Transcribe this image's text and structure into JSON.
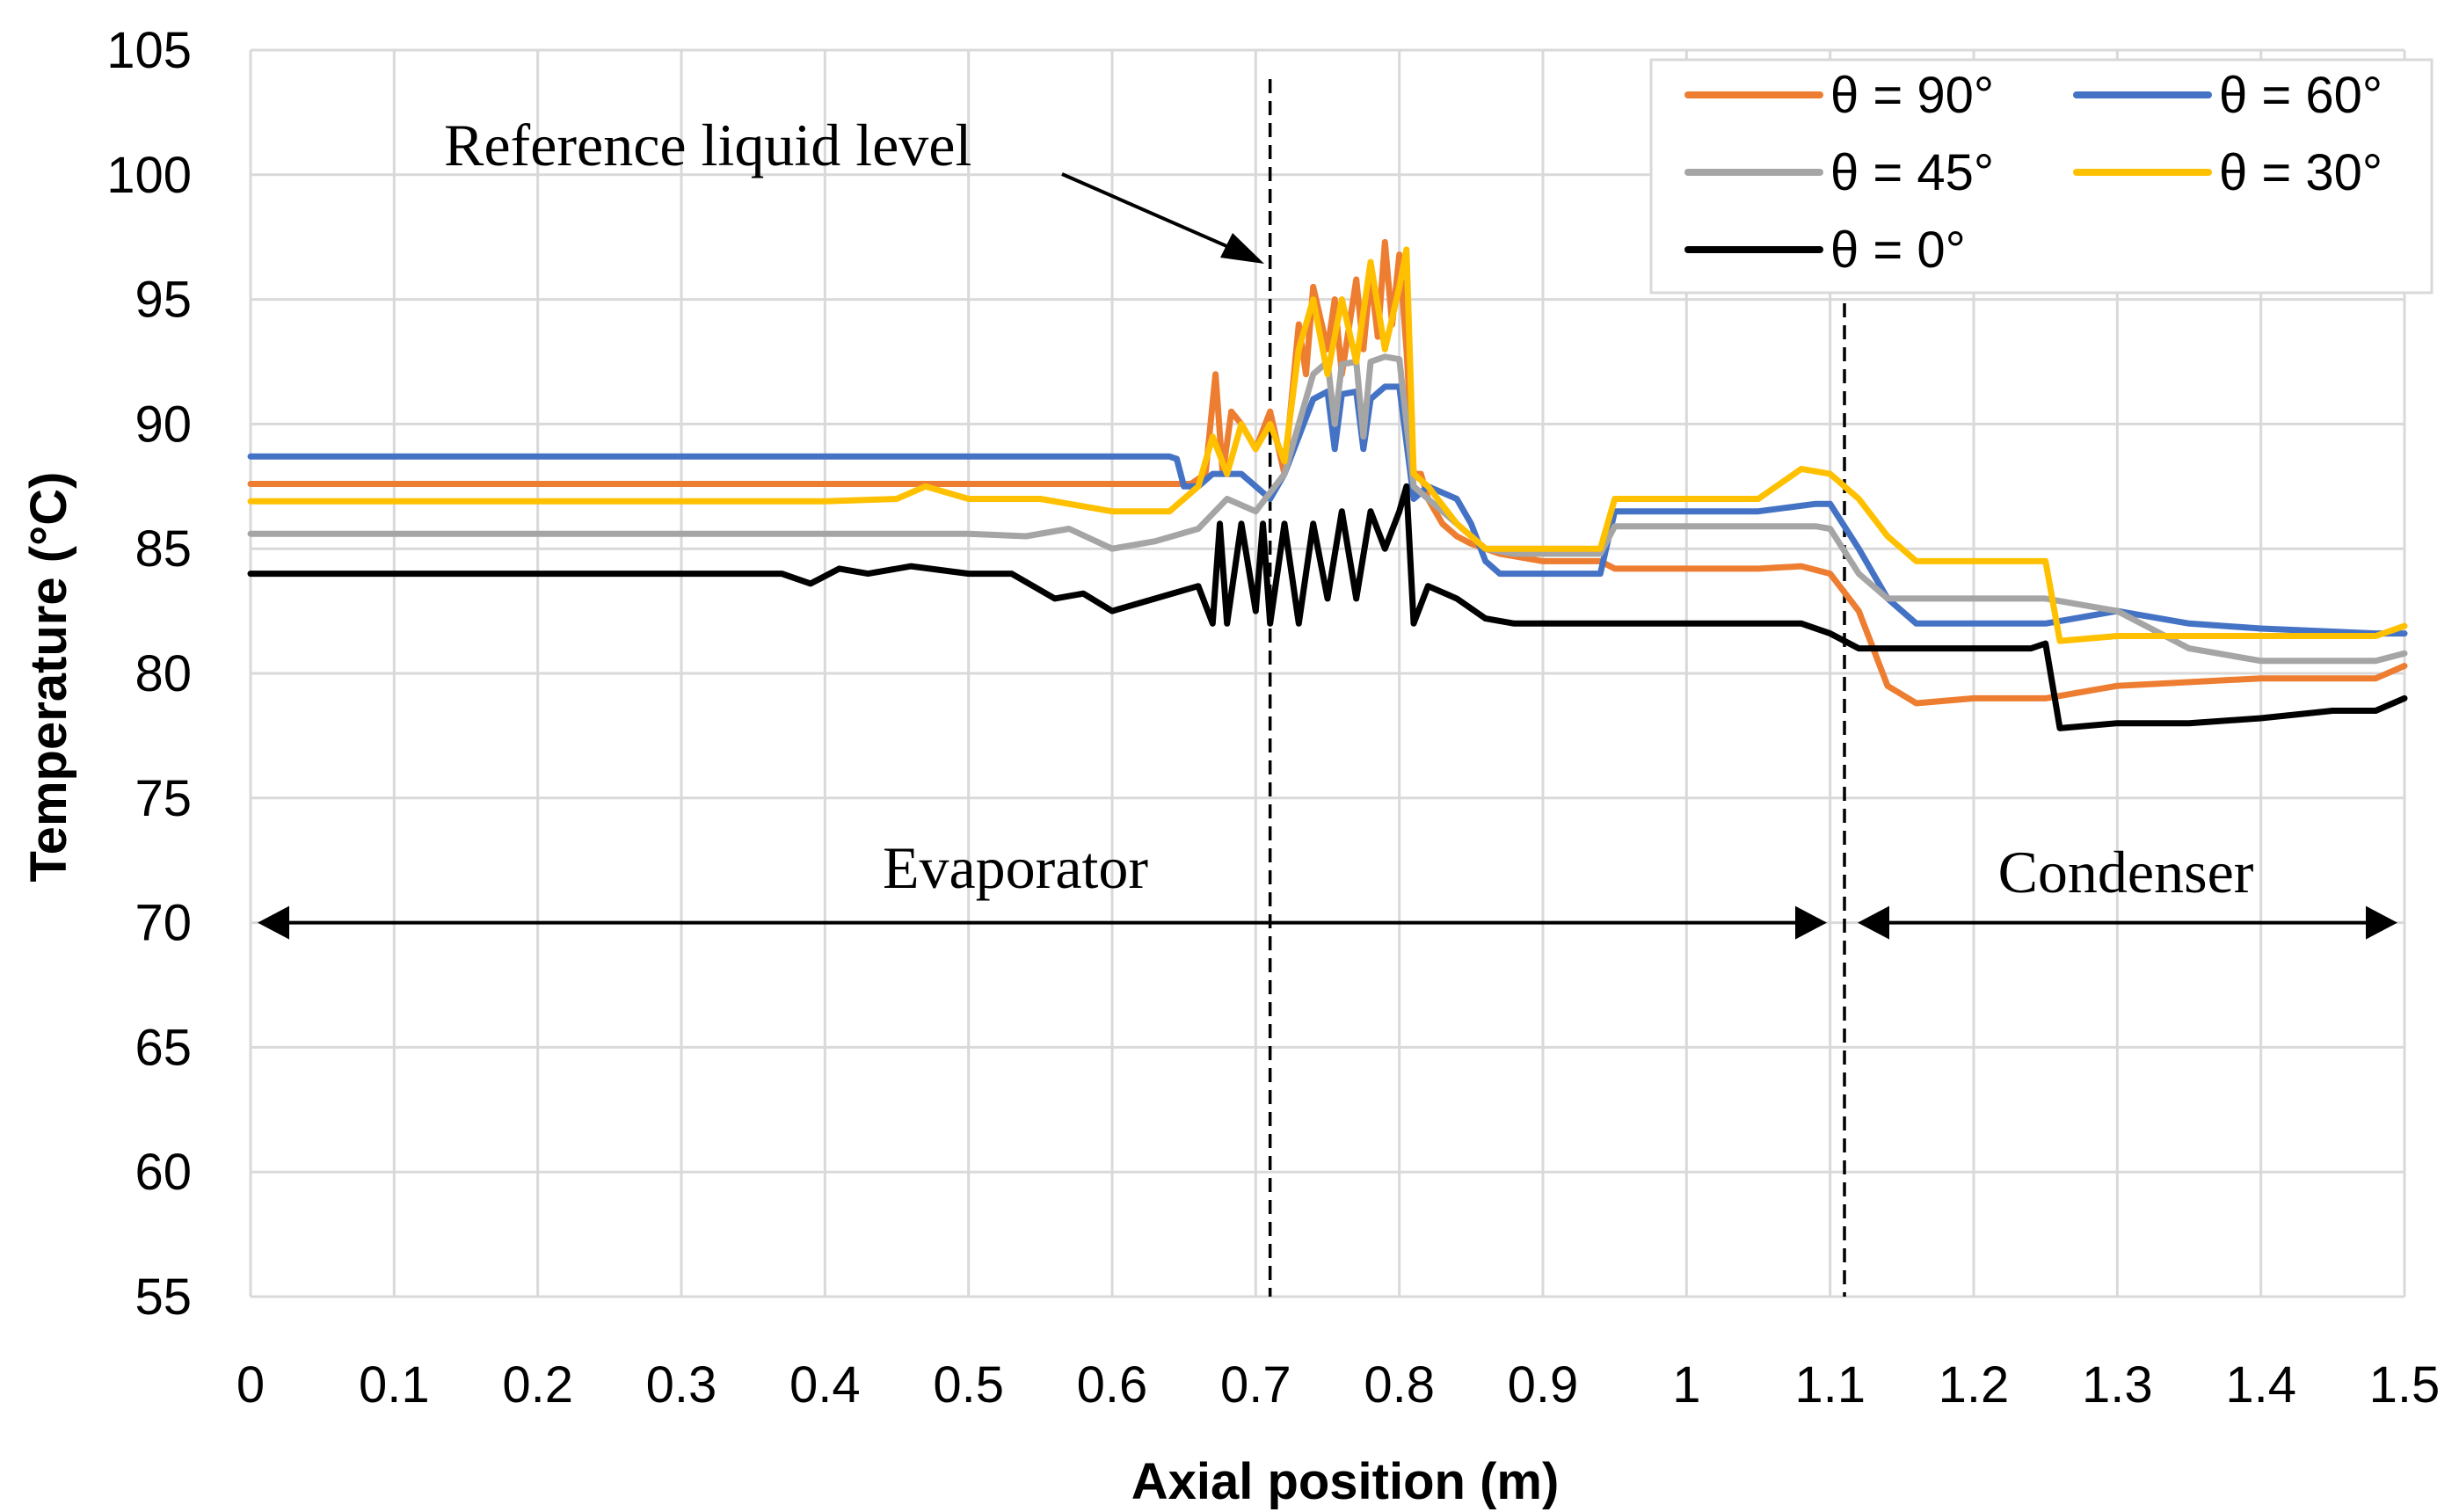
{
  "chart_data": {
    "type": "line",
    "title": "",
    "xlabel": "Axial position (m)",
    "ylabel": "Temperature (°C)",
    "xlim": [
      0,
      1.5
    ],
    "ylim": [
      55,
      105
    ],
    "x_ticks": [
      0,
      0.1,
      0.2,
      0.3,
      0.4,
      0.5,
      0.6,
      0.7,
      0.8,
      0.9,
      1,
      1.1,
      1.2,
      1.3,
      1.4,
      1.5
    ],
    "x_tick_labels": [
      "0",
      "0.1",
      "0.2",
      "0.3",
      "0.4",
      "0.5",
      "0.6",
      "0.7",
      "0.8",
      "0.9",
      "1",
      "1.1",
      "1.2",
      "1.3",
      "1.4",
      "1.5"
    ],
    "y_ticks": [
      55,
      60,
      65,
      70,
      75,
      80,
      85,
      90,
      95,
      100,
      105
    ],
    "y_tick_labels": [
      "55",
      "60",
      "65",
      "70",
      "75",
      "80",
      "85",
      "90",
      "95",
      "100",
      "105"
    ],
    "grid": true,
    "legend_position": "top-right",
    "series": [
      {
        "name": "θ = 90°",
        "color": "#ed7d31",
        "x": [
          0,
          0.2,
          0.4,
          0.6,
          0.655,
          0.665,
          0.672,
          0.677,
          0.683,
          0.69,
          0.7,
          0.71,
          0.72,
          0.73,
          0.735,
          0.74,
          0.75,
          0.755,
          0.76,
          0.77,
          0.775,
          0.78,
          0.785,
          0.79,
          0.795,
          0.8,
          0.805,
          0.81,
          0.815,
          0.82,
          0.83,
          0.84,
          0.85,
          0.86,
          0.87,
          0.9,
          0.94,
          0.95,
          1.0,
          1.05,
          1.08,
          1.1,
          1.12,
          1.14,
          1.16,
          1.2,
          1.25,
          1.3,
          1.4,
          1.48,
          1.5
        ],
        "y": [
          87.6,
          87.6,
          87.6,
          87.6,
          87.6,
          88.0,
          92.0,
          88.0,
          90.5,
          90.0,
          89.0,
          90.5,
          88.0,
          94.0,
          92.0,
          95.5,
          93.0,
          95.0,
          92.0,
          95.8,
          93.0,
          96.0,
          93.5,
          97.3,
          94.0,
          96.8,
          93.0,
          88.0,
          88.0,
          87.0,
          86.0,
          85.5,
          85.2,
          85.0,
          84.8,
          84.5,
          84.5,
          84.2,
          84.2,
          84.2,
          84.3,
          84.0,
          82.5,
          79.5,
          78.8,
          79.0,
          79.0,
          79.5,
          79.8,
          79.8,
          80.3
        ]
      },
      {
        "name": "θ = 60°",
        "color": "#4472c4",
        "x": [
          0,
          0.2,
          0.4,
          0.6,
          0.64,
          0.645,
          0.65,
          0.66,
          0.67,
          0.69,
          0.71,
          0.72,
          0.73,
          0.74,
          0.75,
          0.755,
          0.76,
          0.77,
          0.775,
          0.78,
          0.79,
          0.8,
          0.81,
          0.82,
          0.84,
          0.85,
          0.86,
          0.87,
          0.88,
          0.9,
          0.94,
          0.95,
          1.0,
          1.05,
          1.09,
          1.1,
          1.12,
          1.14,
          1.16,
          1.2,
          1.25,
          1.3,
          1.35,
          1.4,
          1.48,
          1.5
        ],
        "y": [
          88.7,
          88.7,
          88.7,
          88.7,
          88.7,
          88.6,
          87.5,
          87.5,
          88.0,
          88.0,
          87.0,
          88.0,
          89.5,
          91.0,
          91.3,
          89.0,
          91.2,
          91.3,
          89.0,
          91.0,
          91.5,
          91.5,
          87.0,
          87.5,
          87.0,
          86.0,
          84.5,
          84.0,
          84.0,
          84.0,
          84.0,
          86.5,
          86.5,
          86.5,
          86.8,
          86.8,
          85.0,
          83.0,
          82.0,
          82.0,
          82.0,
          82.5,
          82.0,
          81.8,
          81.6,
          81.6
        ]
      },
      {
        "name": "θ = 45°",
        "color": "#a5a5a5",
        "x": [
          0,
          0.2,
          0.4,
          0.5,
          0.54,
          0.57,
          0.6,
          0.63,
          0.66,
          0.68,
          0.7,
          0.72,
          0.73,
          0.74,
          0.75,
          0.755,
          0.76,
          0.77,
          0.775,
          0.78,
          0.79,
          0.8,
          0.81,
          0.82,
          0.84,
          0.86,
          0.88,
          0.9,
          0.94,
          0.95,
          1.0,
          1.05,
          1.09,
          1.1,
          1.12,
          1.14,
          1.16,
          1.2,
          1.25,
          1.3,
          1.35,
          1.4,
          1.48,
          1.5
        ],
        "y": [
          85.6,
          85.6,
          85.6,
          85.6,
          85.5,
          85.8,
          85.0,
          85.3,
          85.8,
          87.0,
          86.5,
          88.0,
          90.0,
          92.0,
          92.5,
          90.0,
          92.4,
          92.5,
          89.5,
          92.5,
          92.7,
          92.6,
          87.5,
          87.0,
          86.0,
          85.0,
          84.8,
          84.8,
          84.8,
          85.9,
          85.9,
          85.9,
          85.9,
          85.8,
          84.0,
          83.0,
          83.0,
          83.0,
          83.0,
          82.5,
          81.0,
          80.5,
          80.5,
          80.8
        ]
      },
      {
        "name": "θ = 30°",
        "color": "#ffc000",
        "x": [
          0,
          0.2,
          0.4,
          0.45,
          0.47,
          0.5,
          0.55,
          0.6,
          0.64,
          0.66,
          0.67,
          0.68,
          0.69,
          0.7,
          0.71,
          0.72,
          0.73,
          0.74,
          0.75,
          0.76,
          0.77,
          0.78,
          0.79,
          0.8,
          0.805,
          0.81,
          0.82,
          0.84,
          0.86,
          0.88,
          0.9,
          0.94,
          0.95,
          1.0,
          1.05,
          1.08,
          1.1,
          1.12,
          1.14,
          1.16,
          1.2,
          1.24,
          1.25,
          1.26,
          1.3,
          1.35,
          1.4,
          1.48,
          1.5
        ],
        "y": [
          86.9,
          86.9,
          86.9,
          87.0,
          87.5,
          87.0,
          87.0,
          86.5,
          86.5,
          87.5,
          89.5,
          88.0,
          90.0,
          89.0,
          90.0,
          88.5,
          93.0,
          95.0,
          92.0,
          95.0,
          92.5,
          96.5,
          93.0,
          95.5,
          97.0,
          88.0,
          87.5,
          86.0,
          85.0,
          85.0,
          85.0,
          85.0,
          87.0,
          87.0,
          87.0,
          88.2,
          88.0,
          87.0,
          85.5,
          84.5,
          84.5,
          84.5,
          84.5,
          81.3,
          81.5,
          81.5,
          81.5,
          81.5,
          81.9
        ]
      },
      {
        "name": "θ = 0°",
        "color": "#000000",
        "x": [
          0,
          0.2,
          0.37,
          0.39,
          0.41,
          0.43,
          0.46,
          0.5,
          0.53,
          0.56,
          0.58,
          0.6,
          0.63,
          0.66,
          0.67,
          0.675,
          0.68,
          0.69,
          0.7,
          0.705,
          0.71,
          0.72,
          0.73,
          0.74,
          0.75,
          0.76,
          0.77,
          0.78,
          0.79,
          0.8,
          0.805,
          0.81,
          0.82,
          0.84,
          0.86,
          0.88,
          0.9,
          1.0,
          1.08,
          1.1,
          1.12,
          1.2,
          1.24,
          1.25,
          1.26,
          1.3,
          1.35,
          1.4,
          1.45,
          1.48,
          1.5
        ],
        "y": [
          84.0,
          84.0,
          84.0,
          83.6,
          84.2,
          84.0,
          84.3,
          84.0,
          84.0,
          83.0,
          83.2,
          82.5,
          83.0,
          83.5,
          82.0,
          86.0,
          82.0,
          86.0,
          82.5,
          86.0,
          82.0,
          86.0,
          82.0,
          86.0,
          83.0,
          86.5,
          83.0,
          86.5,
          85.0,
          86.5,
          87.5,
          82.0,
          83.5,
          83.0,
          82.2,
          82.0,
          82.0,
          82.0,
          82.0,
          81.6,
          81.0,
          81.0,
          81.0,
          81.2,
          77.8,
          78.0,
          78.0,
          78.2,
          78.5,
          78.5,
          79.0
        ]
      }
    ],
    "annotations": {
      "reference_liquid_level_label": "Reference liquid level",
      "reference_liquid_level_x": 0.71,
      "evaporator_condenser_boundary_x": 1.11,
      "evaporator_label": "Evaporator",
      "condenser_label": "Condenser",
      "arrow_y": 70
    }
  }
}
